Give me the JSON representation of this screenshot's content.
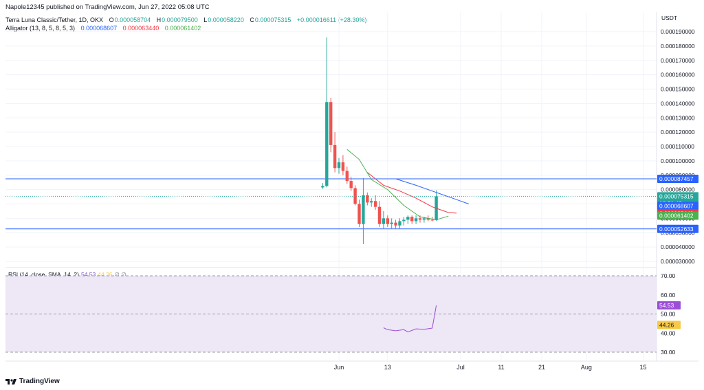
{
  "header": {
    "published": "Napole12345 published on TradingView.com, Jun 27, 2022 05:08 UTC",
    "symbol": "Terra Luna Classic/Tether, 1D, OKX",
    "o_label": "O",
    "o_value": "0.000058704",
    "h_label": "H",
    "h_value": "0.000079500",
    "l_label": "L",
    "l_value": "0.000058220",
    "c_label": "C",
    "c_value": "0.000075315",
    "change": "+0.000016611 (+28.30%)",
    "alligator": "Alligator (13, 8, 5, 8, 5, 3)",
    "jaw": "0.000068607",
    "teeth": "0.000063440",
    "lips": "0.000061402"
  },
  "rsi_legend": {
    "label": "RSI (14, close, SMA, 14, 2)",
    "value": "54.53",
    "sma": "44.26",
    "extra": "∅ ∅"
  },
  "footer": {
    "brand": "TradingView"
  },
  "colors": {
    "up": "#26a69a",
    "down": "#ef5350",
    "jaw": "#2962ff",
    "teeth": "#f23645",
    "lips": "#4caf50",
    "rsi": "#9c4fd6",
    "rsi_band": "#ede7f6",
    "hline": "#2962ff"
  },
  "chart_data": [
    {
      "type": "candlestick",
      "title": "Terra Luna Classic/Tether, 1D, OKX",
      "unit": "USDT",
      "ylim": [
        2.6e-05,
        0.000196
      ],
      "y_ticks": [
        "0.000190000",
        "0.000180000",
        "0.000170000",
        "0.000160000",
        "0.000150000",
        "0.000140000",
        "0.000130000",
        "0.000120000",
        "0.000110000",
        "0.000100000",
        "0.000090000",
        "0.000080000",
        "0.000070000",
        "0.000060000",
        "0.000050000",
        "0.000040000",
        "0.000030000"
      ],
      "x_ticks": [
        "Jun",
        "13",
        "Jul",
        "11",
        "21",
        "Aug",
        "15"
      ],
      "candles": [
        {
          "date": "2022-05-28",
          "o": 8.15e-05,
          "h": 8.45e-05,
          "l": 8.05e-05,
          "c": 8.25e-05
        },
        {
          "date": "2022-05-29",
          "o": 8.25e-05,
          "h": 0.000186,
          "l": 8.15e-05,
          "c": 0.000141
        },
        {
          "date": "2022-05-30",
          "o": 0.000141,
          "h": 0.000144,
          "l": 0.000106,
          "c": 0.000111
        },
        {
          "date": "2022-05-31",
          "o": 0.000111,
          "h": 0.00012,
          "l": 9.2e-05,
          "c": 9.5e-05
        },
        {
          "date": "2022-06-01",
          "o": 9.5e-05,
          "h": 0.000102,
          "l": 9.1e-05,
          "c": 9.9e-05
        },
        {
          "date": "2022-06-02",
          "o": 9.9e-05,
          "h": 0.000104,
          "l": 9e-05,
          "c": 9.3e-05
        },
        {
          "date": "2022-06-03",
          "o": 9.3e-05,
          "h": 9.6e-05,
          "l": 8.4e-05,
          "c": 8.6e-05
        },
        {
          "date": "2022-06-04",
          "o": 8.6e-05,
          "h": 8.9e-05,
          "l": 7.9e-05,
          "c": 8.1e-05
        },
        {
          "date": "2022-06-05",
          "o": 8.1e-05,
          "h": 8.3e-05,
          "l": 6.9e-05,
          "c": 7e-05
        },
        {
          "date": "2022-06-06",
          "o": 7e-05,
          "h": 7.3e-05,
          "l": 5.4e-05,
          "c": 5.6e-05
        },
        {
          "date": "2022-06-07",
          "o": 5.6e-05,
          "h": 8.8e-05,
          "l": 4.2e-05,
          "c": 7.6e-05
        },
        {
          "date": "2022-06-08",
          "o": 7.6e-05,
          "h": 7.8e-05,
          "l": 6.9e-05,
          "c": 7.1e-05
        },
        {
          "date": "2022-06-09",
          "o": 7.1e-05,
          "h": 7.4e-05,
          "l": 6.8e-05,
          "c": 7.2e-05
        },
        {
          "date": "2022-06-10",
          "o": 7.2e-05,
          "h": 7.6e-05,
          "l": 6.6e-05,
          "c": 6.8e-05
        },
        {
          "date": "2022-06-11",
          "o": 6.8e-05,
          "h": 7.2e-05,
          "l": 5.4e-05,
          "c": 5.6e-05
        },
        {
          "date": "2022-06-12",
          "o": 5.6e-05,
          "h": 6.5e-05,
          "l": 5.3e-05,
          "c": 6e-05
        },
        {
          "date": "2022-06-13",
          "o": 6e-05,
          "h": 6.2e-05,
          "l": 5.4e-05,
          "c": 5.6e-05
        },
        {
          "date": "2022-06-14",
          "o": 5.6e-05,
          "h": 6e-05,
          "l": 5.3e-05,
          "c": 5.7e-05
        },
        {
          "date": "2022-06-15",
          "o": 5.7e-05,
          "h": 5.9e-05,
          "l": 5.3e-05,
          "c": 5.5e-05
        },
        {
          "date": "2022-06-16",
          "o": 5.5e-05,
          "h": 6e-05,
          "l": 5.3e-05,
          "c": 5.8e-05
        },
        {
          "date": "2022-06-17",
          "o": 5.8e-05,
          "h": 6.1e-05,
          "l": 5.5e-05,
          "c": 5.9e-05
        },
        {
          "date": "2022-06-18",
          "o": 5.9e-05,
          "h": 6.2e-05,
          "l": 5.6e-05,
          "c": 6.1e-05
        },
        {
          "date": "2022-06-19",
          "o": 6.1e-05,
          "h": 6.2e-05,
          "l": 5.6e-05,
          "c": 5.8e-05
        },
        {
          "date": "2022-06-20",
          "o": 5.8e-05,
          "h": 6.2e-05,
          "l": 5.6e-05,
          "c": 6e-05
        },
        {
          "date": "2022-06-21",
          "o": 6e-05,
          "h": 6.2e-05,
          "l": 5.7e-05,
          "c": 5.9e-05
        },
        {
          "date": "2022-06-22",
          "o": 5.9e-05,
          "h": 6.1e-05,
          "l": 5.7e-05,
          "c": 6e-05
        },
        {
          "date": "2022-06-23",
          "o": 6e-05,
          "h": 6.2e-05,
          "l": 5.8e-05,
          "c": 5.9e-05
        },
        {
          "date": "2022-06-24",
          "o": 5.9e-05,
          "h": 6.1e-05,
          "l": 5.8e-05,
          "c": 5.87e-05
        },
        {
          "date": "2022-06-25",
          "o": 5.87e-05,
          "h": 7.95e-05,
          "l": 5.82e-05,
          "c": 7.53e-05
        }
      ],
      "series": [
        {
          "name": "Jaw",
          "color": "#2962ff",
          "dates": [
            "2022-06-15",
            "2022-06-20",
            "2022-06-25",
            "2022-06-30",
            "2022-07-03"
          ],
          "values": [
            8.75e-05,
            8.3e-05,
            7.8e-05,
            7.3e-05,
            7e-05
          ]
        },
        {
          "name": "Teeth",
          "color": "#f23645",
          "dates": [
            "2022-06-08",
            "2022-06-12",
            "2022-06-16",
            "2022-06-20",
            "2022-06-24",
            "2022-06-28",
            "2022-06-30"
          ],
          "values": [
            9.2e-05,
            8.3e-05,
            7.9e-05,
            7.4e-05,
            6.8e-05,
            6.4e-05,
            6.36e-05
          ]
        },
        {
          "name": "Lips",
          "color": "#4caf50",
          "dates": [
            "2022-06-03",
            "2022-06-06",
            "2022-06-09",
            "2022-06-13",
            "2022-06-17",
            "2022-06-21",
            "2022-06-25",
            "2022-06-28"
          ],
          "values": [
            0.000108,
            0.000101,
            8.7e-05,
            8e-05,
            6.9e-05,
            6.1e-05,
            5.9e-05,
            6.15e-05
          ]
        }
      ],
      "horizontal_lines": [
        {
          "value": 8.7457e-05,
          "label": "0.000087457",
          "color": "#2962ff"
        },
        {
          "value": 5.2633e-05,
          "label": "0.000052633",
          "color": "#2962ff"
        }
      ],
      "price_tags": [
        {
          "value": 7.5315e-05,
          "label": "0.000075315",
          "countdown": "10:51:48",
          "color": "#26a69a"
        },
        {
          "value": 6.8607e-05,
          "label": "0.000068607",
          "color": "#2962ff"
        },
        {
          "value": 6.344e-05,
          "label": "0.000063440",
          "color": "#f23645"
        },
        {
          "value": 6.1402e-05,
          "label": "0.000061402",
          "color": "#4caf50"
        }
      ]
    },
    {
      "type": "line",
      "title": "RSI (14, close, SMA, 14, 2)",
      "ylim": [
        26,
        74
      ],
      "y_ticks": [
        "70.00",
        "60.00",
        "50.00",
        "40.00",
        "30.00"
      ],
      "levels": [
        70,
        50,
        30
      ],
      "series": [
        {
          "name": "RSI",
          "color": "#9c4fd6",
          "dates": [
            "2022-06-12",
            "2022-06-13",
            "2022-06-15",
            "2022-06-17",
            "2022-06-18",
            "2022-06-20",
            "2022-06-22",
            "2022-06-24",
            "2022-06-25"
          ],
          "values": [
            42.8,
            41.8,
            41.2,
            41.8,
            40.6,
            42.2,
            42.0,
            42.6,
            54.5
          ]
        }
      ],
      "tags": [
        {
          "value": 54.53,
          "label": "54.53",
          "color": "#9c4fd6"
        },
        {
          "value": 44.26,
          "label": "44.26",
          "color": "#f7c948"
        }
      ]
    }
  ]
}
